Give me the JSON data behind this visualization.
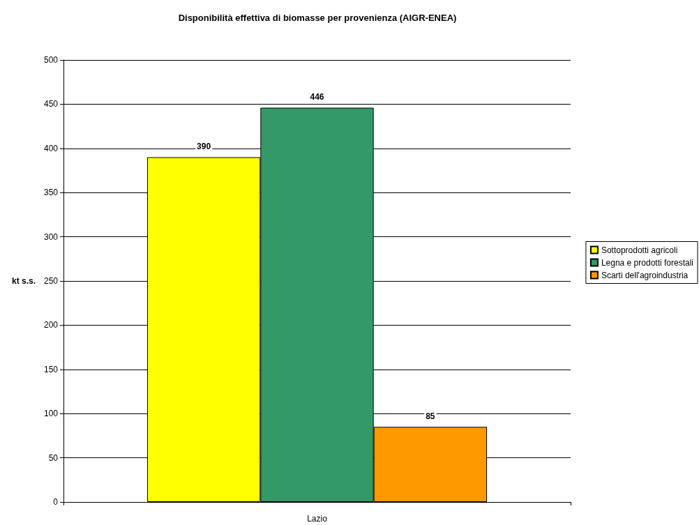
{
  "chart_data": {
    "type": "bar",
    "title": "Disponibilità effettiva di biomasse per provenienza (AIGR-ENEA)",
    "ylabel": "kt s.s.",
    "categories": [
      "Lazio"
    ],
    "series": [
      {
        "name": "Sottoprodotti agricoli",
        "color": "#ffff00",
        "values": [
          390
        ]
      },
      {
        "name": "Legna e prodotti forestali",
        "color": "#339966",
        "values": [
          446
        ]
      },
      {
        "name": "Scarti dell'agroindustria",
        "color": "#ff9900",
        "values": [
          85
        ]
      }
    ],
    "ylim": [
      0,
      500
    ],
    "yticks": [
      0,
      50,
      100,
      150,
      200,
      250,
      300,
      350,
      400,
      450,
      500
    ],
    "grid": "y",
    "legend": "right",
    "data_labels": true
  }
}
